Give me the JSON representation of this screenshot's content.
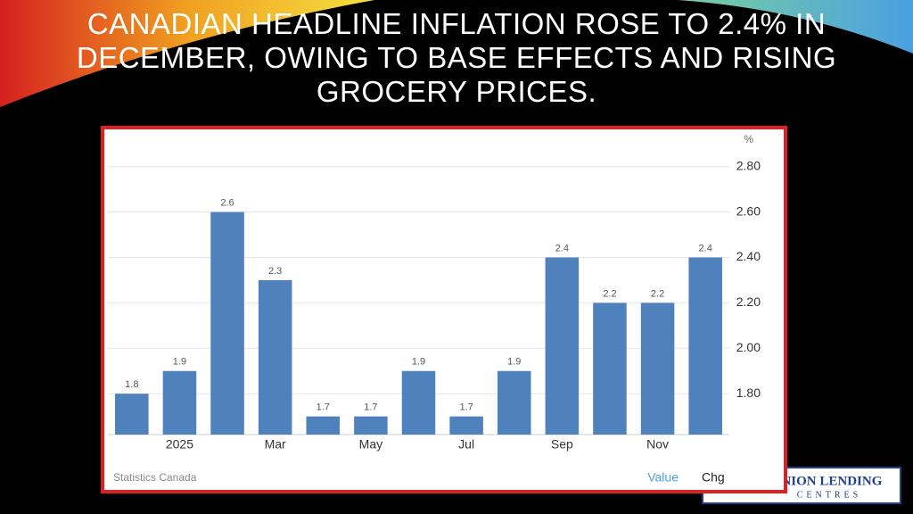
{
  "title": "CANADIAN HEADLINE INFLATION ROSE TO 2.4% IN DECEMBER, OWING TO BASE EFFECTS AND RISING GROCERY PRICES.",
  "logo": {
    "line1": "INION LENDING",
    "line2": "CENTRES"
  },
  "chart_data": {
    "type": "bar",
    "unit": "%",
    "source": "Statistics Canada",
    "tabs": [
      "Value",
      "Chg"
    ],
    "categories": [
      null,
      "2025",
      null,
      "Mar",
      null,
      "May",
      null,
      "Jul",
      null,
      "Sep",
      null,
      "Nov",
      null
    ],
    "values": [
      1.8,
      1.9,
      2.6,
      2.3,
      1.7,
      1.7,
      1.9,
      1.7,
      1.9,
      2.4,
      2.2,
      2.2,
      2.4
    ],
    "color": "#4f81bd",
    "ylim": [
      1.62,
      2.85
    ],
    "yticks": [
      {
        "value": 1.8,
        "label": "1.80"
      },
      {
        "value": 2.0,
        "label": "2.00"
      },
      {
        "value": 2.2,
        "label": "2.20"
      },
      {
        "value": 2.4,
        "label": "2.40"
      },
      {
        "value": 2.6,
        "label": "2.60"
      },
      {
        "value": 2.8,
        "label": "2.80"
      }
    ],
    "grid": true
  }
}
